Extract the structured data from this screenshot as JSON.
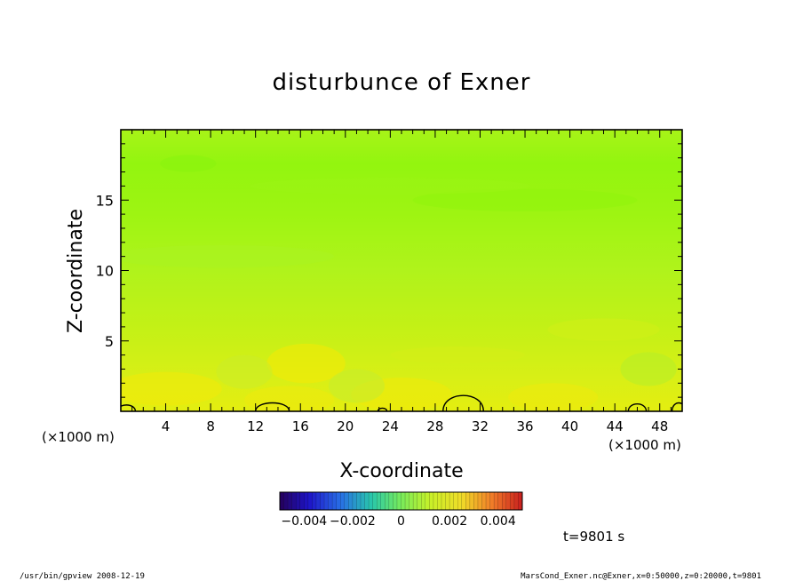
{
  "chart_data": {
    "type": "heatmap",
    "title": "disturbunce of Exner",
    "xlabel": "X-coordinate",
    "ylabel": "Z-coordinate",
    "x_unit_left": "(×1000 m)",
    "x_unit_right": "(×1000 m)",
    "xlim": [
      0,
      50
    ],
    "ylim": [
      0,
      20
    ],
    "x_ticks": [
      4,
      8,
      12,
      16,
      20,
      24,
      28,
      32,
      36,
      40,
      44,
      48
    ],
    "y_ticks": [
      5,
      10,
      15
    ],
    "x_tick_labels": [
      "4",
      "8",
      "12",
      "16",
      "20",
      "24",
      "28",
      "32",
      "36",
      "40",
      "44",
      "48"
    ],
    "y_tick_labels": [
      "5",
      "10",
      "15"
    ],
    "colorbar": {
      "range": [
        -0.005,
        0.005
      ],
      "tick_labels": [
        "−0.004",
        "−0.002",
        "0",
        "0.002",
        "0.004"
      ],
      "tick_values": [
        -0.004,
        -0.002,
        0,
        0.002,
        0.004
      ]
    },
    "field_rows_bottom_to_top": [
      {
        "z": 0.5,
        "value": 0.0026
      },
      {
        "z": 2.0,
        "value": 0.0022
      },
      {
        "z": 4.0,
        "value": 0.0019
      },
      {
        "z": 6.0,
        "value": 0.0016
      },
      {
        "z": 8.0,
        "value": 0.0013
      },
      {
        "z": 10.0,
        "value": 0.001
      },
      {
        "z": 12.0,
        "value": 0.0008
      },
      {
        "z": 14.0,
        "value": 0.0006
      },
      {
        "z": 16.0,
        "value": 0.0005
      },
      {
        "z": 18.0,
        "value": 0.0004
      },
      {
        "z": 20.0,
        "value": 0.0005
      }
    ],
    "contour_level": 0.003,
    "contour_blobs": [
      {
        "x_center": 0.5,
        "half_width": 0.8,
        "height": 0.6
      },
      {
        "x_center": 13.5,
        "half_width": 1.5,
        "height": 0.8
      },
      {
        "x_center": 23.3,
        "half_width": 0.4,
        "height": 0.3
      },
      {
        "x_center": 30.5,
        "half_width": 1.8,
        "height": 1.5
      },
      {
        "x_center": 46.0,
        "half_width": 0.8,
        "height": 0.7
      },
      {
        "x_center": 49.7,
        "half_width": 0.6,
        "height": 0.8
      }
    ],
    "time_label": "t=9801 s",
    "grid": false
  },
  "footer": {
    "left": "/usr/bin/gpview   2008-12-19",
    "right": "MarsCond_Exner.nc@Exner,x=0:50000,z=0:20000,t=9801"
  }
}
